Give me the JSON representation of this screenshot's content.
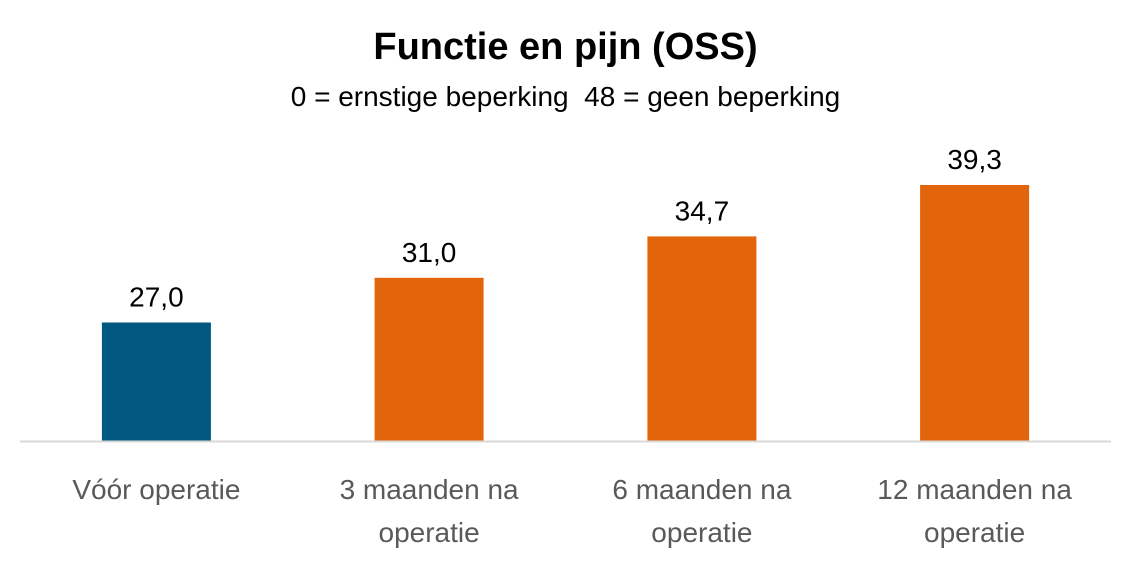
{
  "chart_data": {
    "type": "bar",
    "title": "Functie en pijn (OSS)",
    "subtitle": "0 = ernstige beperking  48 = geen beperking",
    "categories": [
      [
        "Vóór operatie"
      ],
      [
        "3 maanden na",
        "operatie"
      ],
      [
        "6 maanden na",
        "operatie"
      ],
      [
        "12 maanden na",
        "operatie"
      ]
    ],
    "values": [
      27.0,
      31.0,
      34.7,
      39.3
    ],
    "value_labels": [
      "27,0",
      "31,0",
      "34,7",
      "39,3"
    ],
    "bar_colors": [
      "#00577F",
      "#E2640B",
      "#E2640B",
      "#E2640B"
    ],
    "axis_color": "#D9D9D9",
    "ylim": [
      16.4,
      41.0
    ],
    "grid": false,
    "legend": "none",
    "xlabel": "",
    "ylabel": ""
  }
}
